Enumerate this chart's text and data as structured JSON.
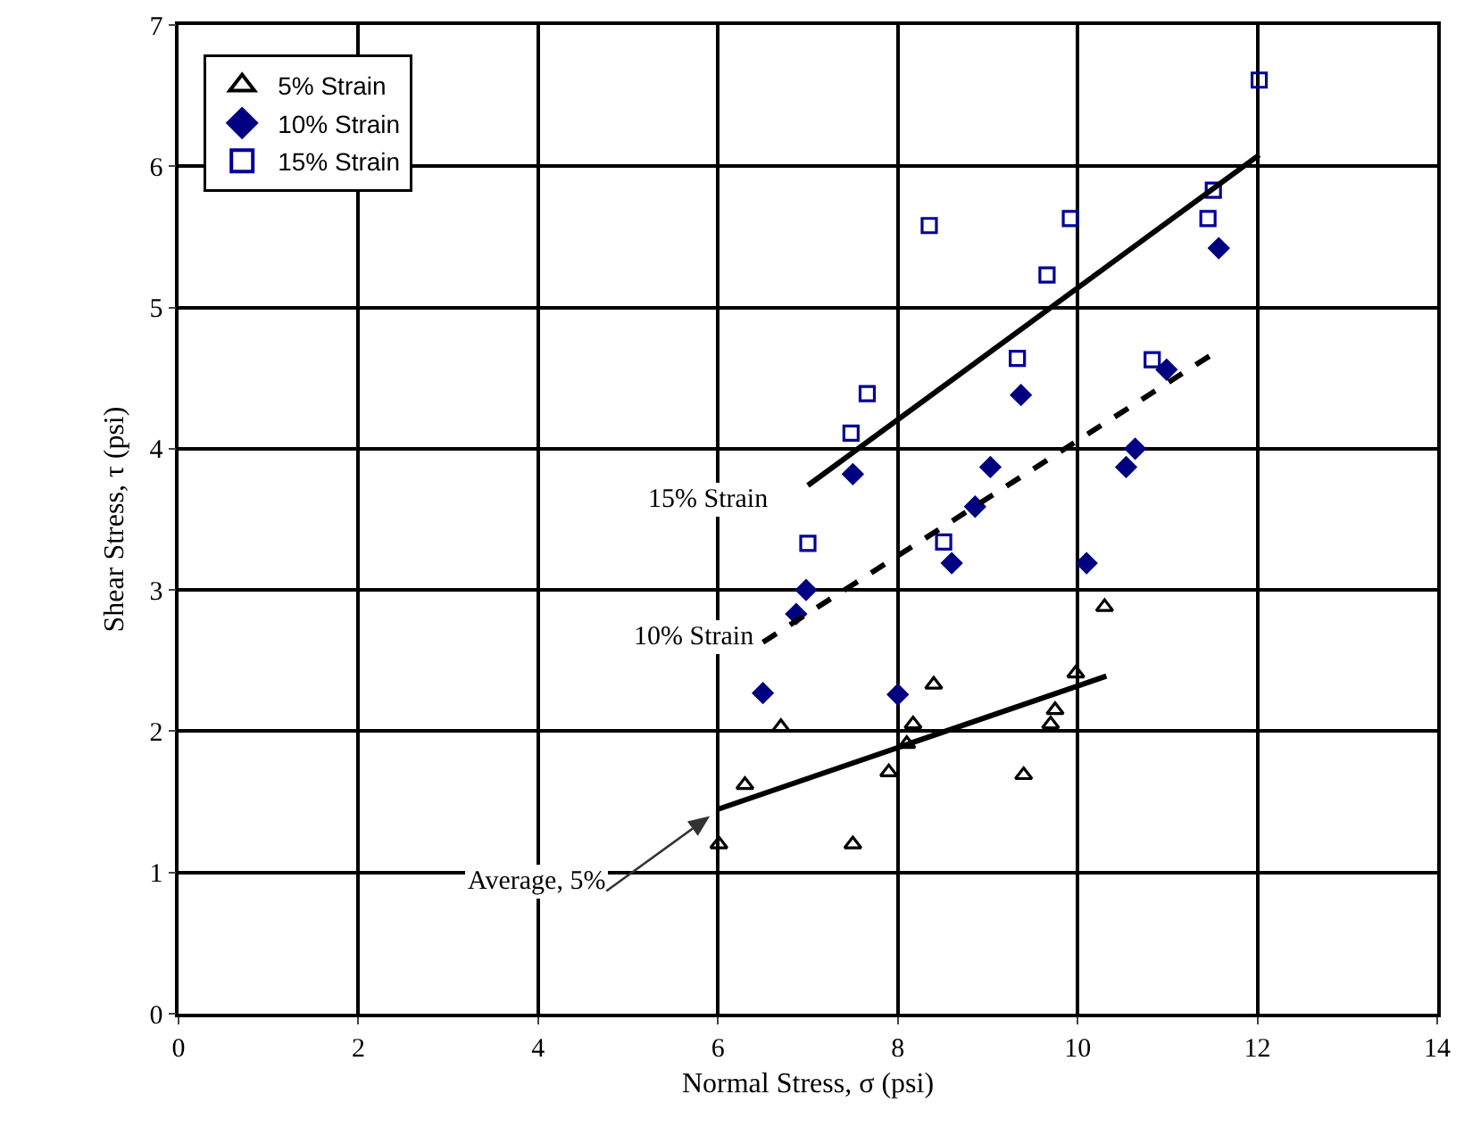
{
  "chart_data": {
    "type": "scatter",
    "xlabel": "Normal Stress, σ (psi)",
    "ylabel": "Shear Stress, τ (psi)",
    "xlim": [
      0,
      14
    ],
    "xticks": [
      0,
      2,
      4,
      6,
      8,
      10,
      12,
      14
    ],
    "ylim": [
      0,
      7
    ],
    "yticks": [
      0,
      1,
      2,
      3,
      4,
      5,
      6,
      7
    ],
    "grid": true,
    "legend": "top left",
    "series": [
      {
        "name": "5% Strain",
        "color": "#000000",
        "marker": "triangle",
        "x": [
          6.01,
          6.3,
          6.7,
          7.5,
          7.9,
          8.1,
          8.17,
          8.4,
          9.4,
          9.7,
          9.75,
          9.98,
          10.3
        ],
        "values": [
          1.2,
          1.62,
          2.03,
          1.2,
          1.71,
          1.91,
          2.05,
          2.33,
          1.69,
          2.05,
          2.15,
          2.41,
          2.88
        ]
      },
      {
        "name": "10% Strain",
        "color": "#000080",
        "marker": "diamond",
        "x": [
          6.5,
          6.87,
          6.98,
          7.5,
          8.0,
          8.6,
          8.86,
          9.03,
          9.37,
          10.1,
          10.54,
          10.64,
          10.99,
          11.57
        ],
        "values": [
          2.27,
          2.83,
          3.0,
          3.82,
          2.26,
          3.19,
          3.59,
          3.87,
          4.38,
          3.19,
          3.87,
          4.0,
          4.56,
          5.42
        ]
      },
      {
        "name": "15% Strain",
        "color": "#000099",
        "marker": "square",
        "x": [
          7.0,
          7.48,
          7.66,
          8.35,
          8.51,
          9.33,
          9.66,
          9.92,
          10.83,
          11.45,
          11.51,
          12.02
        ],
        "values": [
          3.33,
          4.11,
          4.39,
          5.58,
          3.34,
          4.64,
          5.23,
          5.63,
          4.63,
          5.63,
          5.83,
          6.61
        ]
      },
      {
        "type": "line",
        "color": "#000000",
        "line_style": "solid",
        "x": [
          6.01,
          10.32
        ],
        "values": [
          1.45,
          2.39
        ]
      },
      {
        "type": "line",
        "color": "#000000",
        "line_style": "dashed",
        "x": [
          6.5,
          11.55
        ],
        "values": [
          2.63,
          4.69
        ]
      },
      {
        "type": "line",
        "color": "#000000",
        "line_style": "solid",
        "x": [
          7.0,
          12.02
        ],
        "values": [
          3.74,
          6.08
        ]
      }
    ],
    "annotations": [
      {
        "text": "15% Strain",
        "x": 7.0,
        "y": 3.74
      },
      {
        "text": "10% Strain",
        "x": 6.5,
        "y": 2.63
      },
      "Average, 5%"
    ]
  }
}
